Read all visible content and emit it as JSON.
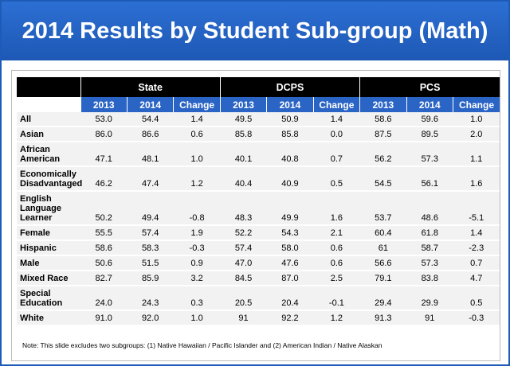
{
  "header": {
    "title": "2014 Results by Student Sub-group (Math)"
  },
  "table": {
    "groups": [
      "State",
      "DCPS",
      "PCS"
    ],
    "subheaders": [
      "2013",
      "2014",
      "Change",
      "2013",
      "2014",
      "Change",
      "2013",
      "2014",
      "Change"
    ],
    "rows": [
      {
        "label": [
          "All"
        ],
        "values": [
          "53.0",
          "54.4",
          "1.4",
          "49.5",
          "50.9",
          "1.4",
          "58.6",
          "59.6",
          "1.0"
        ]
      },
      {
        "label": [
          "Asian"
        ],
        "values": [
          "86.0",
          "86.6",
          "0.6",
          "85.8",
          "85.8",
          "0.0",
          "87.5",
          "89.5",
          "2.0"
        ]
      },
      {
        "label": [
          "African",
          "American"
        ],
        "values": [
          "47.1",
          "48.1",
          "1.0",
          "40.1",
          "40.8",
          "0.7",
          "56.2",
          "57.3",
          "1.1"
        ]
      },
      {
        "label": [
          "Economically",
          "Disadvantaged"
        ],
        "values": [
          "46.2",
          "47.4",
          "1.2",
          "40.4",
          "40.9",
          "0.5",
          "54.5",
          "56.1",
          "1.6"
        ]
      },
      {
        "label": [
          "English",
          "Language",
          "Learner"
        ],
        "values": [
          "50.2",
          "49.4",
          "-0.8",
          "48.3",
          "49.9",
          "1.6",
          "53.7",
          "48.6",
          "-5.1"
        ]
      },
      {
        "label": [
          "Female"
        ],
        "values": [
          "55.5",
          "57.4",
          "1.9",
          "52.2",
          "54.3",
          "2.1",
          "60.4",
          "61.8",
          "1.4"
        ]
      },
      {
        "label": [
          "Hispanic"
        ],
        "values": [
          "58.6",
          "58.3",
          "-0.3",
          "57.4",
          "58.0",
          "0.6",
          "61",
          "58.7",
          "-2.3"
        ]
      },
      {
        "label": [
          "Male"
        ],
        "values": [
          "50.6",
          "51.5",
          "0.9",
          "47.0",
          "47.6",
          "0.6",
          "56.6",
          "57.3",
          "0.7"
        ]
      },
      {
        "label": [
          "Mixed Race"
        ],
        "values": [
          "82.7",
          "85.9",
          "3.2",
          "84.5",
          "87.0",
          "2.5",
          "79.1",
          "83.8",
          "4.7"
        ]
      },
      {
        "label": [
          "Special",
          "Education"
        ],
        "values": [
          "24.0",
          "24.3",
          "0.3",
          "20.5",
          "20.4",
          "-0.1",
          "29.4",
          "29.9",
          "0.5"
        ]
      },
      {
        "label": [
          "White"
        ],
        "values": [
          "91.0",
          "92.0",
          "1.0",
          "91",
          "92.2",
          "1.2",
          "91.3",
          "91",
          "-0.3"
        ]
      }
    ]
  },
  "note": "Note: This slide excludes two subgroups: (1) Native Hawaiian / Pacific Islander and (2) American Indian / Native Alaskan"
}
